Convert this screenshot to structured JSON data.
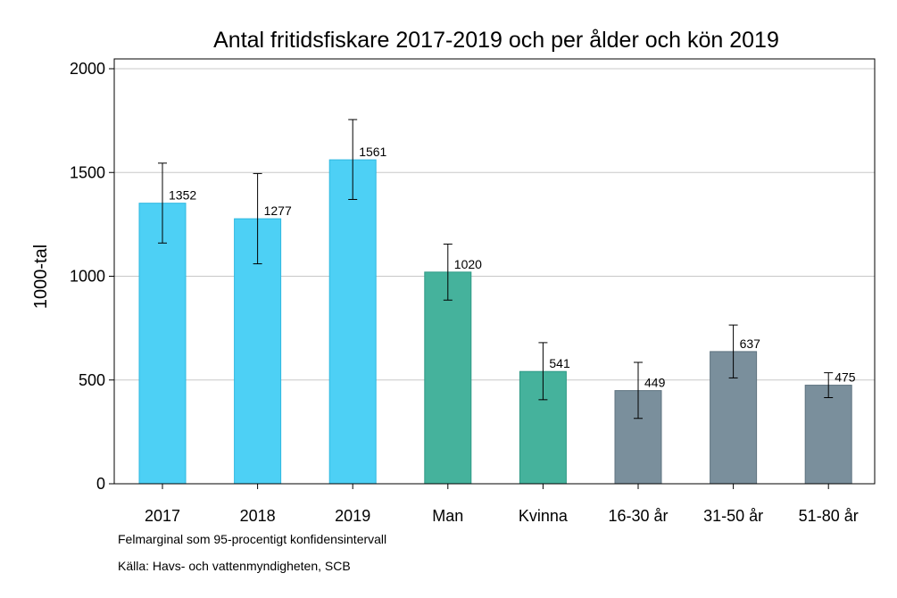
{
  "chart_data": {
    "type": "bar",
    "title": "Antal fritidsfiskare 2017-2019 och per ålder och kön 2019",
    "xlabel": "",
    "ylabel": "1000-tal",
    "ylim": [
      0,
      2000
    ],
    "yticks": [
      0,
      500,
      1000,
      1500,
      2000
    ],
    "grid": true,
    "categories": [
      "2017",
      "2018",
      "2019",
      "Man",
      "Kvinna",
      "16-30 år",
      "31-50 år",
      "51-80 år"
    ],
    "values": [
      1352,
      1277,
      1561,
      1020,
      541,
      449,
      637,
      475
    ],
    "error_low": [
      1160,
      1060,
      1370,
      885,
      405,
      315,
      510,
      415
    ],
    "error_high": [
      1545,
      1495,
      1755,
      1155,
      680,
      585,
      765,
      535
    ],
    "colors": [
      "#4dd0f5",
      "#4dd0f5",
      "#4dd0f5",
      "#45b29c",
      "#45b29c",
      "#7a8f9c",
      "#7a8f9c",
      "#7a8f9c"
    ],
    "edge_colors": [
      "#2fb8e0",
      "#2fb8e0",
      "#2fb8e0",
      "#2e9a85",
      "#2e9a85",
      "#5f7380",
      "#5f7380",
      "#5f7380"
    ]
  },
  "notes": {
    "margin": "Felmarginal som 95-procentigt konfidensintervall",
    "source": "Källa: Havs- och vattenmyndigheten, SCB"
  }
}
